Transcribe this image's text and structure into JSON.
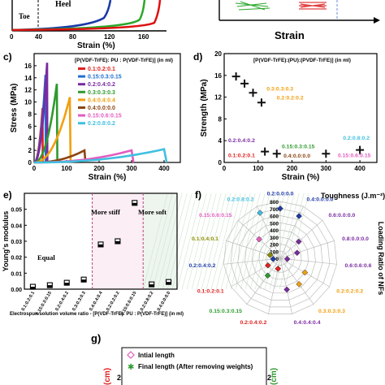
{
  "panels": {
    "a": {
      "annotations": [
        "Toe",
        "Heel"
      ],
      "xlabel": "Strain (%)",
      "xticks": [
        "0",
        "40",
        "80",
        "120",
        "160"
      ],
      "colors": [
        "#1a3aa8",
        "#2aa82a",
        "#e01010"
      ]
    },
    "b": {
      "xlabel": "Strain"
    },
    "c": {
      "label": "c)",
      "chart_data": {
        "type": "line",
        "title": "",
        "xlabel": "Strain (%)",
        "ylabel": "Stress (MPa)",
        "xlim": [
          0,
          450
        ],
        "ylim": [
          0,
          18
        ],
        "xticks": [
          0,
          100,
          200,
          300,
          400
        ],
        "yticks": [
          0,
          2,
          4,
          6,
          8,
          10,
          12,
          14,
          16
        ],
        "legend_title": "[P(VDF-TrFE): PU : P(VDF-TrFE)] (in ml)",
        "legend_position": "top-right",
        "series": [
          {
            "name": "0.1:0.2:0.1",
            "color": "#e02020",
            "peak_x": 26,
            "peak_y": 9.0
          },
          {
            "name": "0.15:0.3:0.15",
            "color": "#1f6fd0",
            "peak_x": 35,
            "peak_y": 14.5
          },
          {
            "name": "0.2:0.4:0.2",
            "color": "#7a2aa0",
            "peak_x": 40,
            "peak_y": 16.5
          },
          {
            "name": "0.3:0.3:0.3",
            "color": "#2e9a2e",
            "peak_x": 70,
            "peak_y": 13.0
          },
          {
            "name": "0.4:0.4:0.4",
            "color": "#f0a010",
            "peak_x": 110,
            "peak_y": 10.8
          },
          {
            "name": "0.4:0.0:0.0",
            "color": "#8b4513",
            "peak_x": 155,
            "peak_y": 2.0
          },
          {
            "name": "0.15:0.6:0.15",
            "color": "#e35cc0",
            "peak_x": 300,
            "peak_y": 2.0
          },
          {
            "name": "0.2:0.8:0.2",
            "color": "#40c0e0",
            "peak_x": 400,
            "peak_y": 2.2
          }
        ]
      }
    },
    "d": {
      "label": "d)",
      "chart_data": {
        "type": "scatter",
        "title": "",
        "xlabel": "Strain (%)",
        "ylabel": "Strength (MPa)",
        "xlim": [
          0,
          450
        ],
        "ylim": [
          0,
          20
        ],
        "xticks": [
          0,
          100,
          200,
          300,
          400
        ],
        "yticks": [
          0,
          4,
          8,
          12,
          16,
          20
        ],
        "legend_title": "[P(VDF-TrFE):(PU):(PVDF-TrFE)] (in ml)",
        "points": [
          {
            "label": "0.1:0.2:0.1",
            "x": 35,
            "y": 15.8,
            "color": "#e02020"
          },
          {
            "label": "0.15:0.3:0.15",
            "x": 60,
            "y": 14.5,
            "color": "#1f6fd0"
          },
          {
            "label": "0.2:0.4:0.2",
            "x": 85,
            "y": 12.8,
            "color": "#7a2aa0"
          },
          {
            "label": "0.3:0.3:0.3",
            "x": 110,
            "y": 11.0,
            "color": "#2e9a2e"
          },
          {
            "label": "0.4:0.4:0.4",
            "x": 120,
            "y": 2.0,
            "color": "#f0a010"
          },
          {
            "label": "0.4:0.0:0.0",
            "x": 155,
            "y": 1.6,
            "color": "#8b4513"
          },
          {
            "label": "0.15:0.6:0.15",
            "x": 300,
            "y": 1.6,
            "color": "#e35cc0"
          },
          {
            "label": "0.2:0.8:0.2",
            "x": 400,
            "y": 2.3,
            "color": "#40c0e0"
          }
        ],
        "point_labels": [
          {
            "text": "0.3:0.3:0.3",
            "color": "#f0a010",
            "x": 125,
            "y": 13.2
          },
          {
            "text": "0.2:0.2:0.2",
            "color": "#f0a010",
            "x": 155,
            "y": 11.6
          },
          {
            "text": "0.2:0.4:0.2",
            "color": "#7a2aa0",
            "x": 12,
            "y": 3.7
          },
          {
            "text": "0.1:0.2:0.1",
            "color": "#e02020",
            "x": 12,
            "y": 1.0
          },
          {
            "text": "0.15:0.3:0.15",
            "color": "#2e9a2e",
            "x": 170,
            "y": 2.6
          },
          {
            "text": "0.4:0.0:0.0",
            "color": "#8b4513",
            "x": 175,
            "y": 0.9
          },
          {
            "text": "0.2:0.8:0.2",
            "color": "#40c0e0",
            "x": 350,
            "y": 4.2
          },
          {
            "text": "0.15:0.6:0.15",
            "color": "#e35cc0",
            "x": 335,
            "y": 1.0
          }
        ]
      }
    },
    "e": {
      "label": "e)",
      "chart_data": {
        "type": "scatter",
        "title": "",
        "xlabel": "Electrospun solution volume ratio - [P(VDF-TrFE): PU : P(VDF-TrFE)] (in ml)",
        "ylabel": "Young's modulus",
        "ylim": [
          0,
          0.06
        ],
        "yticks": [
          0.0,
          0.01,
          0.02,
          0.03,
          0.04,
          0.05
        ],
        "categories": [
          "0.1:0.2:0.1",
          "0.15:0.3:0.15",
          "0.2:0.4:0.2",
          "0.3:0.3:0.3",
          "0.4:0.4:0.4",
          "0.2:0.2:0.2",
          "0.15:0.6:0.15",
          "0.2:0.8:0.2",
          "0.4:0.0:0.0"
        ],
        "values": [
          0.0015,
          0.0025,
          0.004,
          0.006,
          0.028,
          0.03,
          0.054,
          0.003,
          0.0045
        ],
        "regions": [
          {
            "text": "Equal",
            "from": 0,
            "to": 3
          },
          {
            "text": "More stiff",
            "from": 4,
            "to": 6
          },
          {
            "text": "More soft",
            "from": 7,
            "to": 8
          }
        ]
      }
    },
    "f": {
      "label": "f)",
      "chart_data": {
        "type": "radar",
        "title": "Toughness (J.m⁻²)",
        "right_label": "Loading Ratio of NFs",
        "rings": [
          0,
          100,
          200,
          300,
          400,
          500,
          600,
          700,
          800
        ],
        "spokes": [
          {
            "label": "0.2:0.0:0.0",
            "value": 700,
            "color": "#1f3aa8"
          },
          {
            "label": "0.4:0.0:0.0",
            "value": 650,
            "color": "#1f3aa8"
          },
          {
            "label": "0.6:0.0:0.0",
            "value": 350,
            "color": "#7a2aa0"
          },
          {
            "label": "0.8:0.0:0.0",
            "value": 250,
            "color": "#7a2aa0"
          },
          {
            "label": "0.6:0.6:0.6",
            "value": 100,
            "color": "#7a2aa0"
          },
          {
            "label": "0.2:0.2:0.2",
            "value": 400,
            "color": "#f0a010"
          },
          {
            "label": "0.3:0.3:0.3",
            "value": 450,
            "color": "#f0a010"
          },
          {
            "label": "0.4:0.4:0.4",
            "value": 450,
            "color": "#7a2aa0"
          },
          {
            "label": "0.2:0.4:0.2",
            "value": 150,
            "color": "#e02020"
          },
          {
            "label": "0.15:0.3:0.15",
            "value": 300,
            "color": "#2e9a2e"
          },
          {
            "label": "0.1:0.2:0.1",
            "value": 200,
            "color": "#e02020"
          },
          {
            "label": "0.2:0.4:0.2",
            "value": 100,
            "color": "#1f3aa8"
          },
          {
            "label": "0.1:0.4:0.1",
            "value": 150,
            "color": "#8b8b00"
          },
          {
            "label": "0.15:0.6:0.15",
            "value": 400,
            "color": "#e35cc0"
          },
          {
            "label": "0.2:0.8:0.2",
            "value": 700,
            "color": "#40c0e0"
          }
        ]
      }
    },
    "g": {
      "label": "g)",
      "ylabel_left": "(cm)",
      "ylabel_right": "(cm)",
      "tick": "2",
      "legend": [
        {
          "text": "Intial length",
          "color": "#e35cc0"
        },
        {
          "text": "Final length (After removing weights)",
          "color": "#2e9a2e"
        }
      ]
    }
  }
}
